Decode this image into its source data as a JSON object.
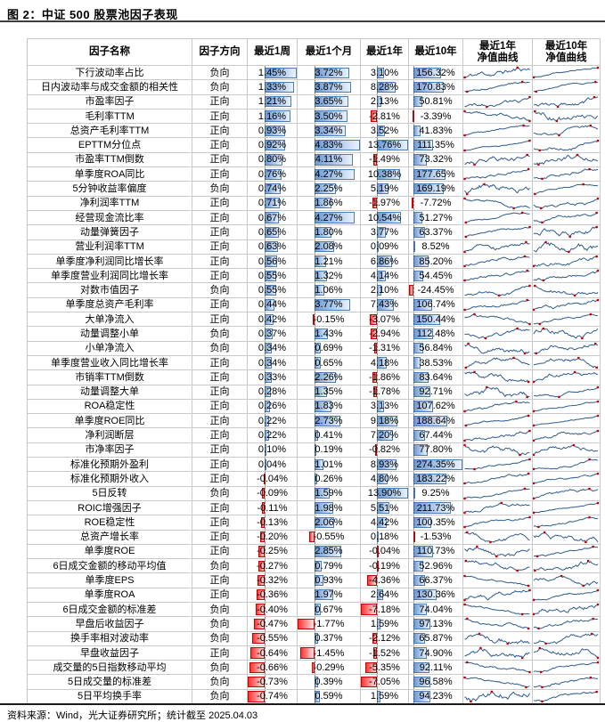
{
  "title": "图 2：中证 500 股票池因子表现",
  "footer": "资料来源：Wind，光大证券研究所；统计截至 2025.04.03",
  "colors": {
    "bar_positive": "#6d9bd6",
    "bar_positive_light": "#eaf2fb",
    "bar_positive_border": "#4a7ebb",
    "bar_negative": "#ff3232",
    "bar_negative_light": "#ffe2e2",
    "bar_negative_border": "#cc0000",
    "sparkline": "#2e5b8f",
    "sparkline_marker": "#c00000",
    "grid": "#c9c9c9"
  },
  "table": {
    "headers": [
      "因子名称",
      "因子方向",
      "最近1周",
      "最近1个月",
      "最近1年",
      "最近10年",
      "最近1年\n净值曲线",
      "最近10年\n净值曲线"
    ],
    "rows": [
      {
        "name": "下行波动率占比",
        "direction": "负向",
        "w1": 1.45,
        "m1": 3.72,
        "y1": 3.1,
        "y10": 156.32
      },
      {
        "name": "日内波动率与成交金额的相关性",
        "direction": "负向",
        "w1": 1.33,
        "m1": 3.87,
        "y1": 8.28,
        "y10": 170.83
      },
      {
        "name": "市盈率因子",
        "direction": "正向",
        "w1": 1.21,
        "m1": 3.65,
        "y1": 2.13,
        "y10": 50.81
      },
      {
        "name": "毛利率TTM",
        "direction": "正向",
        "w1": 1.16,
        "m1": 3.5,
        "y1": -2.81,
        "y10": -3.39
      },
      {
        "name": "总资产毛利率TTM",
        "direction": "正向",
        "w1": 0.93,
        "m1": 3.34,
        "y1": 3.52,
        "y10": 41.83
      },
      {
        "name": "EPTTM分位点",
        "direction": "正向",
        "w1": 0.92,
        "m1": 4.83,
        "y1": 13.76,
        "y10": 111.35
      },
      {
        "name": "市盈率TTM倒数",
        "direction": "正向",
        "w1": 0.8,
        "m1": 4.11,
        "y1": -1.49,
        "y10": 73.32
      },
      {
        "name": "单季度ROA同比",
        "direction": "正向",
        "w1": 0.76,
        "m1": 4.27,
        "y1": 10.38,
        "y10": 177.65
      },
      {
        "name": "5分钟收益率偏度",
        "direction": "负向",
        "w1": 0.74,
        "m1": 2.25,
        "y1": 5.19,
        "y10": 169.19
      },
      {
        "name": "净利润率TTM",
        "direction": "正向",
        "w1": 0.71,
        "m1": 1.86,
        "y1": -1.97,
        "y10": -7.72
      },
      {
        "name": "经营现金流比率",
        "direction": "正向",
        "w1": 0.67,
        "m1": 4.27,
        "y1": 10.54,
        "y10": 51.27
      },
      {
        "name": "动量弹簧因子",
        "direction": "正向",
        "w1": 0.65,
        "m1": 1.8,
        "y1": 3.77,
        "y10": 63.37
      },
      {
        "name": "营业利润率TTM",
        "direction": "正向",
        "w1": 0.63,
        "m1": 2.08,
        "y1": 0.09,
        "y10": 8.52
      },
      {
        "name": "单季度净利润同比增长率",
        "direction": "正向",
        "w1": 0.56,
        "m1": 1.21,
        "y1": 6.86,
        "y10": 85.2
      },
      {
        "name": "单季度营业利润同比增长率",
        "direction": "正向",
        "w1": 0.55,
        "m1": 1.32,
        "y1": 4.14,
        "y10": 54.45
      },
      {
        "name": "对数市值因子",
        "direction": "负向",
        "w1": 0.55,
        "m1": 1.06,
        "y1": 2.1,
        "y10": -24.45
      },
      {
        "name": "单季度总资产毛利率",
        "direction": "正向",
        "w1": 0.44,
        "m1": 3.77,
        "y1": 7.43,
        "y10": 106.74
      },
      {
        "name": "大单净流入",
        "direction": "正向",
        "w1": 0.42,
        "m1": -0.15,
        "y1": -3.07,
        "y10": 150.44
      },
      {
        "name": "动量调整小单",
        "direction": "负向",
        "w1": 0.37,
        "m1": 1.43,
        "y1": -2.94,
        "y10": 112.48
      },
      {
        "name": "小单净流入",
        "direction": "负向",
        "w1": 0.34,
        "m1": 0.69,
        "y1": -1.31,
        "y10": 56.84
      },
      {
        "name": "单季度营业收入同比增长率",
        "direction": "正向",
        "w1": 0.34,
        "m1": 0.65,
        "y1": 4.18,
        "y10": 38.53
      },
      {
        "name": "市销率TTM倒数",
        "direction": "正向",
        "w1": 0.33,
        "m1": 2.26,
        "y1": -1.86,
        "y10": 83.64
      },
      {
        "name": "动量调整大单",
        "direction": "正向",
        "w1": 0.28,
        "m1": 1.35,
        "y1": -1.78,
        "y10": 92.71
      },
      {
        "name": "ROA稳定性",
        "direction": "正向",
        "w1": 0.26,
        "m1": 1.83,
        "y1": 3.13,
        "y10": 107.62
      },
      {
        "name": "单季度ROE同比",
        "direction": "正向",
        "w1": 0.22,
        "m1": 2.73,
        "y1": 9.18,
        "y10": 188.64
      },
      {
        "name": "净利润断层",
        "direction": "正向",
        "w1": 0.22,
        "m1": 0.41,
        "y1": 7.2,
        "y10": 67.44
      },
      {
        "name": "市净率因子",
        "direction": "正向",
        "w1": 0.1,
        "m1": 0.19,
        "y1": -0.82,
        "y10": 77.8
      },
      {
        "name": "标准化预期外盈利",
        "direction": "正向",
        "w1": 0.04,
        "m1": 1.01,
        "y1": 8.93,
        "y10": 274.35
      },
      {
        "name": "标准化预期外收入",
        "direction": "正向",
        "w1": -0.04,
        "m1": 0.26,
        "y1": 4.8,
        "y10": 183.22
      },
      {
        "name": "5日反转",
        "direction": "负向",
        "w1": -0.09,
        "m1": 1.59,
        "y1": 13.9,
        "y10": 9.25
      },
      {
        "name": "ROIC增强因子",
        "direction": "正向",
        "w1": -0.11,
        "m1": 1.98,
        "y1": 5.51,
        "y10": 211.73
      },
      {
        "name": "ROE稳定性",
        "direction": "正向",
        "w1": -0.13,
        "m1": 2.06,
        "y1": 4.42,
        "y10": 100.35
      },
      {
        "name": "总资产增长率",
        "direction": "正向",
        "w1": -0.2,
        "m1": -0.55,
        "y1": 0.18,
        "y10": -1.53
      },
      {
        "name": "单季度ROE",
        "direction": "正向",
        "w1": -0.25,
        "m1": 2.85,
        "y1": -0.04,
        "y10": 110.73
      },
      {
        "name": "6日成交金额的移动平均值",
        "direction": "负向",
        "w1": -0.27,
        "m1": 0.79,
        "y1": -0.19,
        "y10": 52.96
      },
      {
        "name": "单季度EPS",
        "direction": "正向",
        "w1": -0.32,
        "m1": 0.93,
        "y1": -4.36,
        "y10": 66.37
      },
      {
        "name": "单季度ROA",
        "direction": "正向",
        "w1": -0.36,
        "m1": 1.97,
        "y1": 2.64,
        "y10": 130.36
      },
      {
        "name": "6日成交金额的标准差",
        "direction": "负向",
        "w1": -0.4,
        "m1": 0.67,
        "y1": -7.18,
        "y10": 74.04
      },
      {
        "name": "早盘后收益因子",
        "direction": "负向",
        "w1": -0.47,
        "m1": -1.77,
        "y1": 1.59,
        "y10": 97.13
      },
      {
        "name": "换手率相对波动率",
        "direction": "负向",
        "w1": -0.55,
        "m1": 0.37,
        "y1": -2.12,
        "y10": 65.87
      },
      {
        "name": "早盘收益因子",
        "direction": "正向",
        "w1": -0.64,
        "m1": -1.45,
        "y1": -1.52,
        "y10": 74.9
      },
      {
        "name": "成交量的5日指数移动平均",
        "direction": "负向",
        "w1": -0.66,
        "m1": -0.29,
        "y1": -5.35,
        "y10": 92.11
      },
      {
        "name": "5日成交量的标准差",
        "direction": "负向",
        "w1": -0.73,
        "m1": 0.39,
        "y1": -7.05,
        "y10": 96.58
      },
      {
        "name": "5日平均换手率",
        "direction": "负向",
        "w1": -0.74,
        "m1": 0.59,
        "y1": 1.59,
        "y10": 94.23
      }
    ]
  }
}
